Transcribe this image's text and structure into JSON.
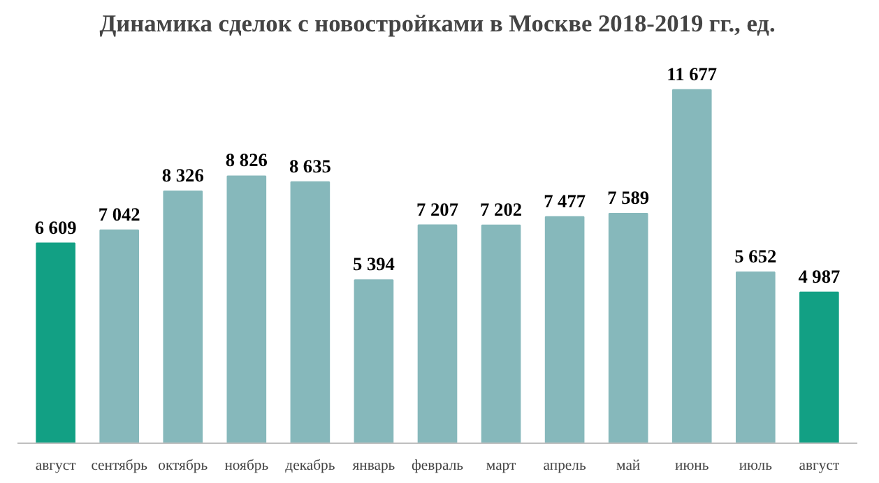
{
  "chart_data": {
    "type": "bar",
    "title": "Динамика сделок с новостройками в Москве 2018-2019 гг., ед.",
    "categories": [
      "август",
      "сентябрь",
      "октябрь",
      "ноябрь",
      "декабрь",
      "январь",
      "февраль",
      "март",
      "апрель",
      "май",
      "июнь",
      "июль",
      "август"
    ],
    "values": [
      6609,
      7042,
      8326,
      8826,
      8635,
      5394,
      7207,
      7202,
      7477,
      7589,
      11677,
      5652,
      4987
    ],
    "value_labels": [
      "6 609",
      "7 042",
      "8 326",
      "8 826",
      "8 635",
      "5 394",
      "7 207",
      "7 202",
      "7 477",
      "7 589",
      "11 677",
      "5 652",
      "4 987"
    ],
    "colors": [
      "#12a084",
      "#86b8bb",
      "#86b8bb",
      "#86b8bb",
      "#86b8bb",
      "#86b8bb",
      "#86b8bb",
      "#86b8bb",
      "#86b8bb",
      "#86b8bb",
      "#86b8bb",
      "#86b8bb",
      "#12a084"
    ],
    "grid": false
  }
}
